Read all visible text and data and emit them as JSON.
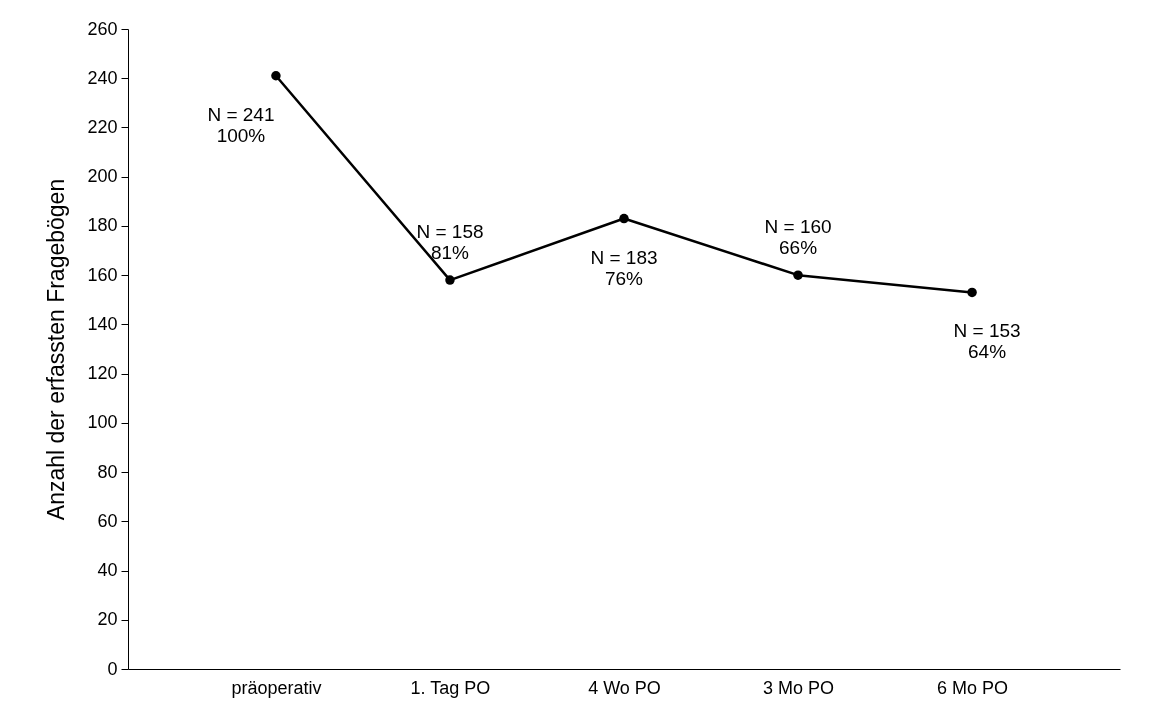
{
  "chart_data": {
    "type": "line",
    "ylabel": "Anzahl der erfassten Fragebögen",
    "categories": [
      "präoperativ",
      "1. Tag PO",
      "4 Wo PO",
      "3 Mo PO",
      "6 Mo PO"
    ],
    "series": [
      {
        "color": "#000000",
        "values": [
          241,
          158,
          183,
          160,
          153
        ]
      }
    ],
    "ylim": [
      0,
      260
    ],
    "yticks": [
      0,
      20,
      40,
      60,
      80,
      100,
      120,
      140,
      160,
      180,
      200,
      220,
      240,
      260
    ],
    "grid": false,
    "marker": "circle",
    "line_style": "solid",
    "annotations": [
      {
        "text": "N = 241\n100%",
        "x": "präoperativ",
        "y": 241
      },
      {
        "text": "N = 158\n81%",
        "x": "1. Tag PO",
        "y": 158
      },
      {
        "text": "N = 183\n76%",
        "x": "4 Wo PO",
        "y": 183
      },
      {
        "text": "N = 160\n66%",
        "x": "3 Mo PO",
        "y": 160
      },
      {
        "text": "N = 153\n64%",
        "x": "6 Mo PO",
        "y": 153
      }
    ]
  }
}
